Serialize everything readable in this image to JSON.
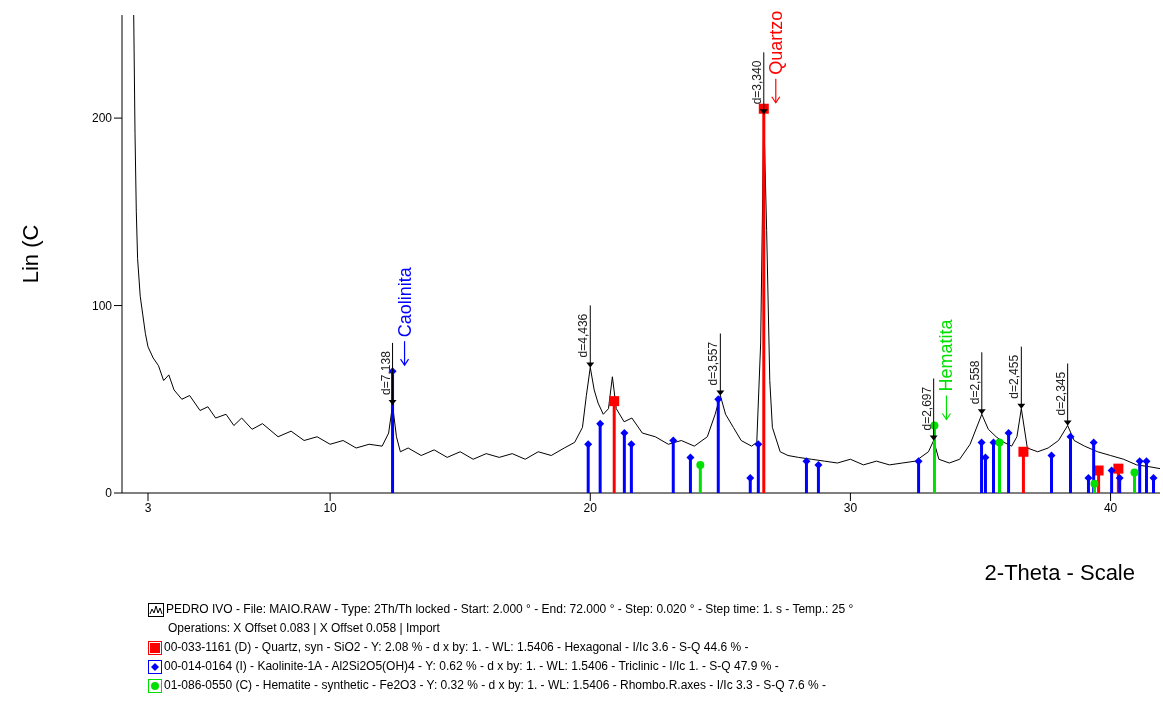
{
  "chart_data": {
    "type": "line",
    "xlabel": "2-Theta - Scale",
    "ylabel": "Lin (C",
    "xlim": [
      2,
      41.9
    ],
    "ylim": [
      0,
      255
    ],
    "xticks": [
      3,
      10,
      20,
      30,
      40
    ],
    "yticks": [
      0,
      100,
      200
    ],
    "grid": false,
    "legend": false,
    "x": [
      2.45,
      2.5,
      2.55,
      2.6,
      2.7,
      2.8,
      2.9,
      3.0,
      3.2,
      3.4,
      3.6,
      3.8,
      4.0,
      4.3,
      4.6,
      5.0,
      5.3,
      5.6,
      6.0,
      6.3,
      6.6,
      7.0,
      7.4,
      8.0,
      8.5,
      9.0,
      9.5,
      10.0,
      10.5,
      11.0,
      11.5,
      12.0,
      12.25,
      12.4,
      12.55,
      12.7,
      13.0,
      13.5,
      14.0,
      14.5,
      15.0,
      15.5,
      16.0,
      16.5,
      17.0,
      17.5,
      18.0,
      18.5,
      19.0,
      19.4,
      19.7,
      19.85,
      20.0,
      20.15,
      20.3,
      20.5,
      20.7,
      20.85,
      21.0,
      21.3,
      21.6,
      22.0,
      22.5,
      23.0,
      23.5,
      24.0,
      24.5,
      24.8,
      25.0,
      25.2,
      25.5,
      25.8,
      26.2,
      26.4,
      26.55,
      26.67,
      26.78,
      26.9,
      27.0,
      27.3,
      27.6,
      28.0,
      28.5,
      29.0,
      29.5,
      30.0,
      30.5,
      31.0,
      31.5,
      32.0,
      32.5,
      33.0,
      33.2,
      33.4,
      33.8,
      34.2,
      34.6,
      35.05,
      35.3,
      35.6,
      35.9,
      36.2,
      36.4,
      36.57,
      36.8,
      37.2,
      37.6,
      38.0,
      38.35,
      38.6,
      39.0,
      39.5,
      40.0,
      40.5,
      41.0,
      41.5,
      41.9
    ],
    "series": [
      {
        "color": "#000000",
        "values": [
          255,
          192,
          150,
          125,
          105,
          95,
          85,
          78,
          72,
          68,
          60,
          63,
          55,
          50,
          52,
          44,
          46,
          40,
          42,
          36,
          40,
          34,
          37,
          30,
          33,
          28,
          30,
          26,
          28,
          24,
          26,
          25,
          32,
          47,
          30,
          22,
          24,
          20,
          23,
          19,
          22,
          18,
          21,
          19,
          21,
          18,
          22,
          20,
          24,
          27,
          35,
          52,
          67,
          55,
          48,
          42,
          45,
          62,
          45,
          38,
          40,
          32,
          30,
          26,
          28,
          25,
          30,
          42,
          52,
          42,
          35,
          28,
          25,
          27,
          80,
          202,
          140,
          60,
          35,
          22,
          20,
          19,
          18,
          17,
          16,
          18,
          15,
          17,
          15,
          16,
          17,
          22,
          28,
          18,
          16,
          18,
          26,
          42,
          34,
          30,
          27,
          25,
          30,
          45,
          24,
          22,
          24,
          28,
          36,
          28,
          25,
          22,
          20,
          18,
          15,
          14,
          13
        ]
      },
      {
        "type": "lollipop",
        "name": "Quartzo",
        "color": "#ff0000",
        "marker": "square",
        "x": [
          20.92,
          26.67,
          36.65,
          39.54,
          40.3
        ],
        "values": [
          49,
          205,
          22,
          12,
          13
        ]
      },
      {
        "type": "lollipop",
        "name": "Caolinita",
        "color": "#0000ff",
        "marker": "diamond",
        "x": [
          12.4,
          19.92,
          20.38,
          21.31,
          21.58,
          23.19,
          23.85,
          24.92,
          26.15,
          26.46,
          28.31,
          28.77,
          32.62,
          35.04,
          35.19,
          35.5,
          36.08,
          37.73,
          38.46,
          39.15,
          39.35,
          40.04,
          40.35,
          41.12,
          41.38,
          41.65
        ],
        "values": [
          65,
          26,
          37,
          32,
          26,
          28,
          19,
          50,
          8,
          26,
          17,
          15,
          17,
          27,
          19,
          27,
          32,
          20,
          30,
          8,
          27,
          12,
          8,
          17,
          17,
          8
        ]
      },
      {
        "type": "lollipop",
        "name": "Hematita",
        "color": "#00e000",
        "marker": "circle",
        "x": [
          24.23,
          33.23,
          35.73,
          39.38,
          40.92
        ],
        "values": [
          15,
          36,
          27,
          5,
          11
        ]
      }
    ],
    "annotations": [
      {
        "text": "d=7,138",
        "x": 12.4,
        "y": 47
      },
      {
        "text": "d=4,436",
        "x": 20.0,
        "y": 67
      },
      {
        "text": "d=3,557",
        "x": 25.0,
        "y": 52
      },
      {
        "text": "d=3,340",
        "x": 26.67,
        "y": 202
      },
      {
        "text": "d=2,697",
        "x": 33.2,
        "y": 28
      },
      {
        "text": "d=2,558",
        "x": 35.05,
        "y": 42
      },
      {
        "text": "d=2,455",
        "x": 36.57,
        "y": 45
      },
      {
        "text": "d=2,345",
        "x": 38.35,
        "y": 36
      },
      "PEDRO IVO - File: MAIO.RAW - Type: 2Th/Th locked - Start: 2.000 ° - End: 72.000 ° - Step: 0.020 ° - Step time: 1. s - Temp.: 25 °",
      "Operations: X Offset 0.083 | X Offset 0.058 | Import",
      "00-033-1161 (D) - Quartz, syn - SiO2 - Y: 2.08 % - d x by: 1. - WL: 1.5406 - Hexagonal - I/Ic 3.6 - S-Q 44.6 % -",
      "00-014-0164 (I) - Kaolinite-1A - Al2Si2O5(OH)4 - Y: 0.62 % - d x by: 1. - WL: 1.5406 - Triclinic - I/Ic 1. - S-Q 47.9 % -",
      "01-086-0550 (C) - Hematite - synthetic - Fe2O3 - Y: 0.32 % - d x by: 1. - WL: 1.5406 - Rhombo.R.axes - I/Ic 3.3 - S-Q 7.6 % -"
    ]
  }
}
